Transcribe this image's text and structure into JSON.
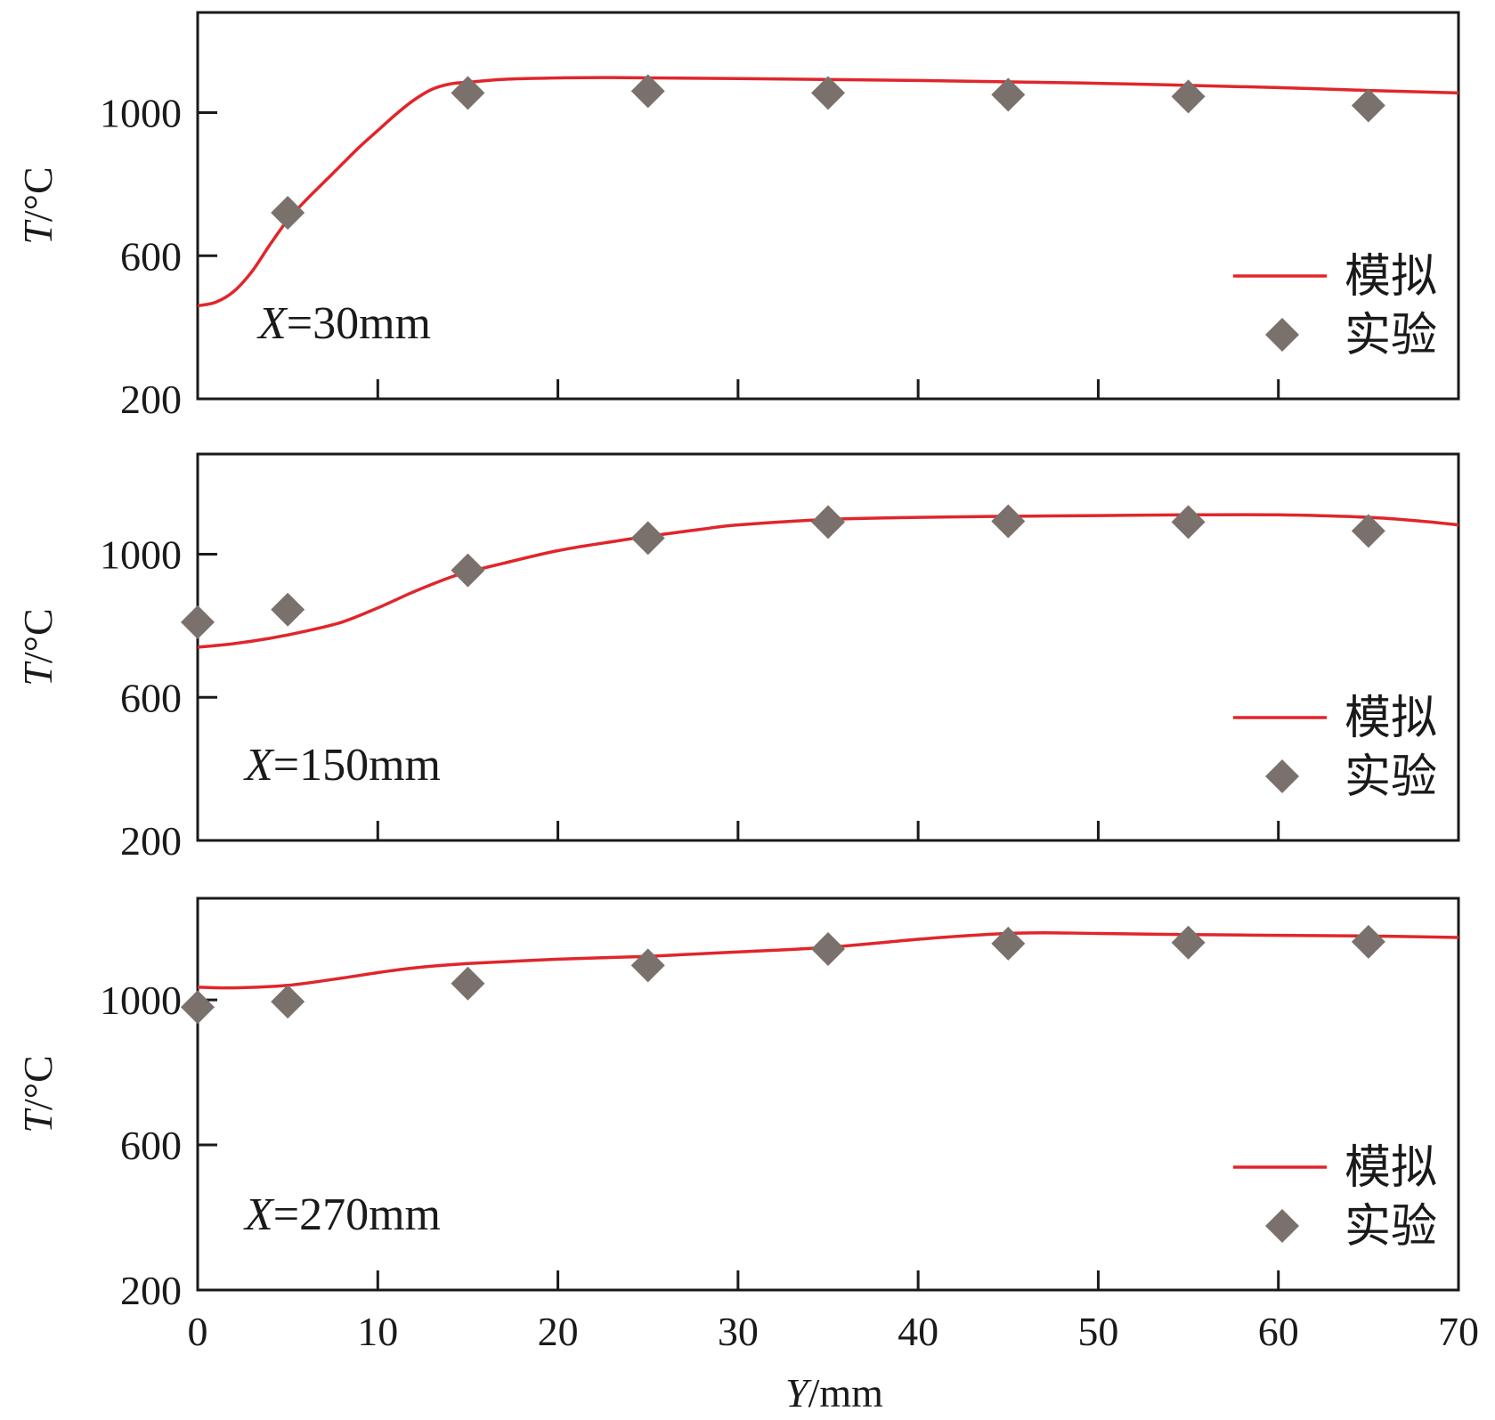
{
  "chart_data": {
    "type": "line+scatter",
    "x_axis": {
      "label_var": "Y",
      "label_unit": "/mm",
      "range": [
        0,
        70
      ],
      "ticks": [
        0,
        10,
        20,
        30,
        40,
        50,
        60,
        70
      ],
      "tick_labels": [
        "0",
        "10",
        "20",
        "30",
        "40",
        "50",
        "60",
        "70"
      ]
    },
    "y_axis": {
      "label_var": "T",
      "label_unit": "/°C",
      "range": [
        200,
        1280
      ],
      "ticks": [
        200,
        600,
        1000
      ],
      "tick_labels": [
        "200",
        "600",
        "1000"
      ]
    },
    "legend": {
      "placement": "bottom-right",
      "line_label": "模拟",
      "marker_label": "实验"
    },
    "colors": {
      "simulation": "#e0262b",
      "experiment": "#7a716c",
      "axis": "#1a1a1a"
    },
    "panels": [
      {
        "label_var": "X",
        "label_value": "=30mm",
        "simulation": {
          "name": "模拟",
          "x": [
            0,
            1,
            2,
            3,
            4,
            5,
            6,
            7,
            8,
            9,
            10,
            11,
            12,
            13,
            14,
            15,
            17,
            20,
            23,
            30,
            40,
            50,
            60,
            65,
            70
          ],
          "y": [
            460,
            470,
            500,
            555,
            630,
            700,
            755,
            805,
            855,
            905,
            950,
            995,
            1035,
            1065,
            1080,
            1085,
            1093,
            1097,
            1098,
            1095,
            1090,
            1082,
            1070,
            1062,
            1055
          ]
        },
        "experiment": {
          "name": "实验",
          "x": [
            5,
            15,
            25,
            35,
            45,
            55,
            65
          ],
          "y": [
            720,
            1055,
            1060,
            1055,
            1050,
            1045,
            1020
          ]
        }
      },
      {
        "label_var": "X",
        "label_value": "=150mm",
        "simulation": {
          "name": "模拟",
          "x": [
            0,
            2,
            4,
            6,
            8,
            10,
            12,
            14,
            15,
            17,
            20,
            23,
            25,
            28,
            30,
            35,
            40,
            45,
            50,
            55,
            60,
            65,
            68,
            70
          ],
          "y": [
            740,
            750,
            765,
            785,
            810,
            850,
            895,
            935,
            950,
            975,
            1010,
            1035,
            1050,
            1070,
            1082,
            1097,
            1103,
            1106,
            1108,
            1110,
            1110,
            1103,
            1092,
            1082
          ]
        },
        "experiment": {
          "name": "实验",
          "x": [
            0,
            5,
            15,
            25,
            35,
            45,
            55,
            65
          ],
          "y": [
            810,
            845,
            955,
            1045,
            1090,
            1092,
            1090,
            1065
          ]
        }
      },
      {
        "label_var": "X",
        "label_value": "=270mm",
        "simulation": {
          "name": "模拟",
          "x": [
            0,
            2,
            5,
            8,
            10,
            12,
            15,
            20,
            25,
            30,
            35,
            40,
            43,
            45,
            47,
            50,
            55,
            60,
            65,
            70
          ],
          "y": [
            1035,
            1033,
            1040,
            1060,
            1075,
            1088,
            1100,
            1112,
            1120,
            1132,
            1145,
            1167,
            1178,
            1183,
            1185,
            1183,
            1180,
            1178,
            1176,
            1172
          ]
        },
        "experiment": {
          "name": "实验",
          "x": [
            0,
            5,
            15,
            25,
            35,
            45,
            55,
            65
          ],
          "y": [
            980,
            995,
            1045,
            1095,
            1140,
            1155,
            1158,
            1160
          ]
        }
      }
    ]
  }
}
